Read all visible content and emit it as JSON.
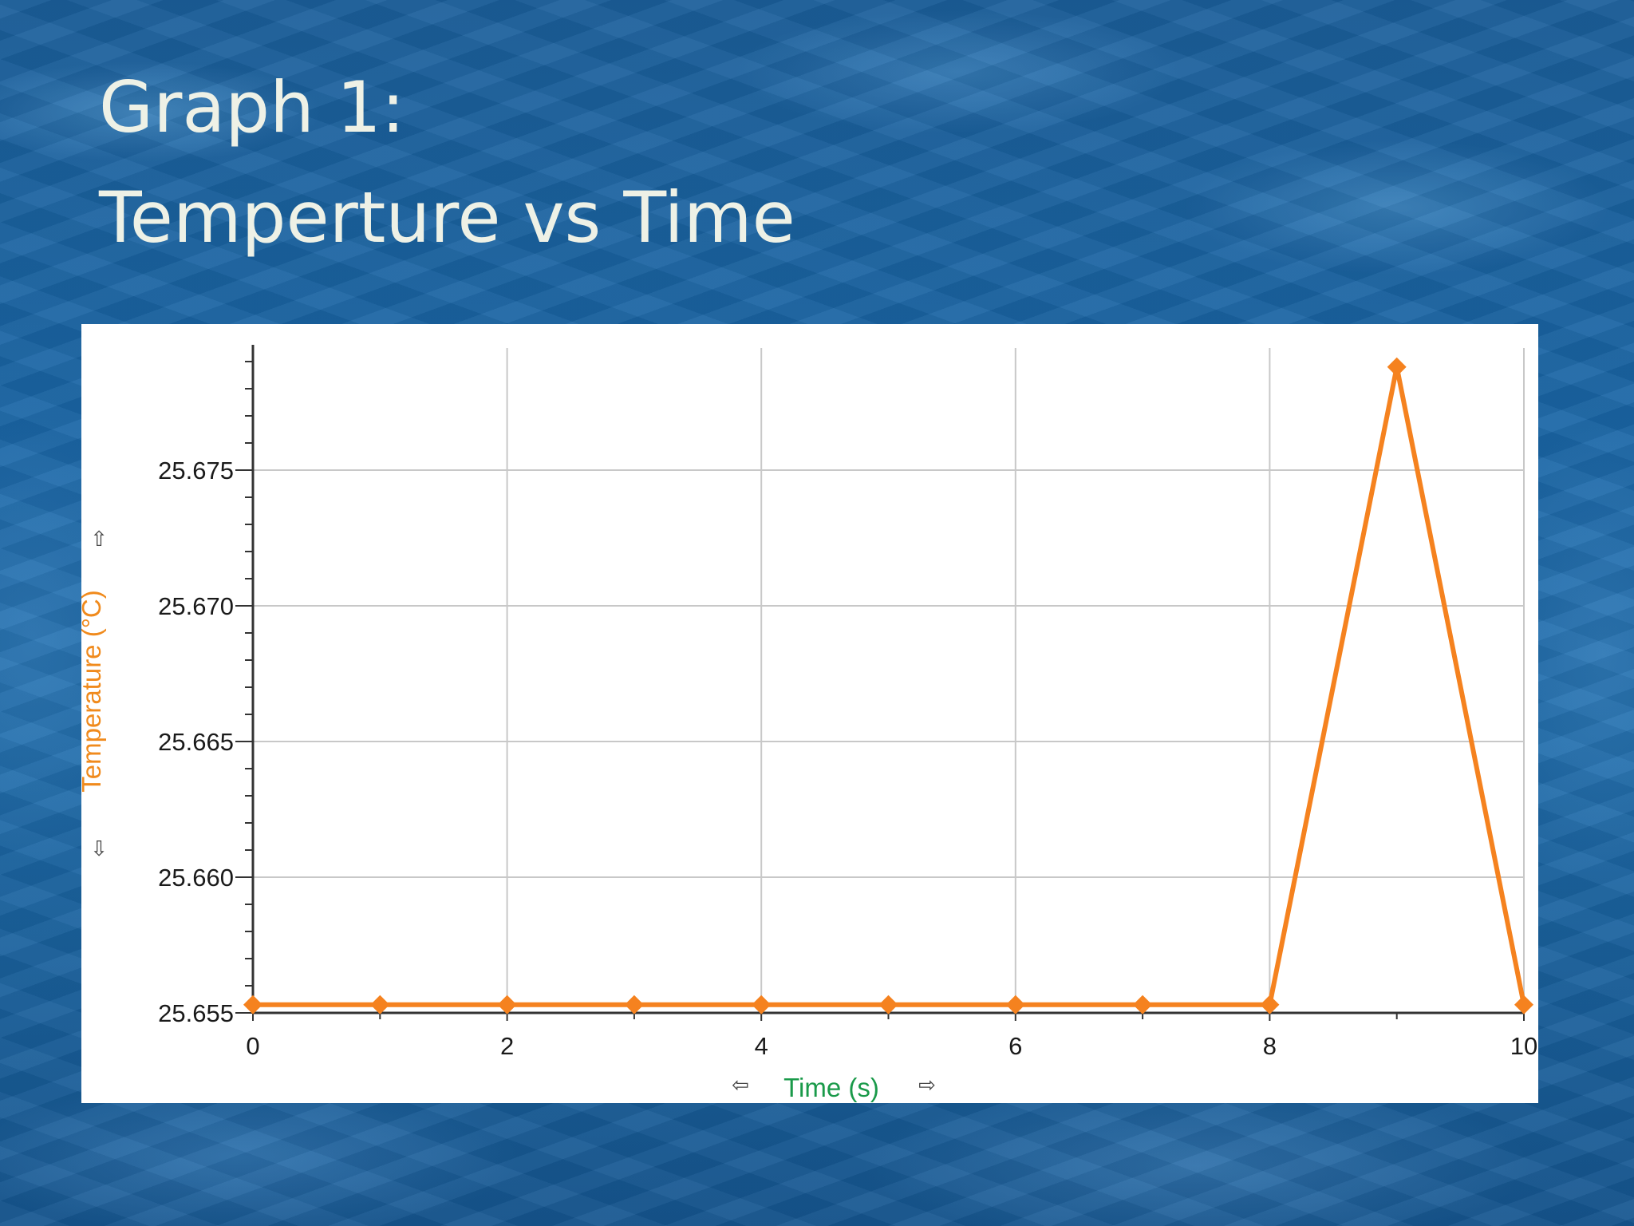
{
  "slide": {
    "title_line1": "Graph 1:",
    "title_line2": "Temperture vs Time"
  },
  "colors": {
    "series": "#f5821f",
    "x_axis_title": "#1a9a4a",
    "y_axis_title": "#f08a1c",
    "grid": "#c8c8c8",
    "title_text": "#eef1e6"
  },
  "icons": {
    "y_axis_up": "arrow-up-icon",
    "y_axis_down": "arrow-down-icon",
    "x_axis_left": "arrow-left-icon",
    "x_axis_right": "arrow-right-icon"
  },
  "chart_data": {
    "type": "line",
    "xlabel": "Time (s)",
    "ylabel": "Temperature (°C)",
    "xlim": [
      0,
      10
    ],
    "ylim": [
      25.655,
      25.6795
    ],
    "x_ticks": [
      "0",
      "2",
      "4",
      "6",
      "8",
      "10"
    ],
    "y_ticks": [
      "25.655",
      "25.660",
      "25.665",
      "25.670",
      "25.675"
    ],
    "grid": true,
    "marker": "diamond",
    "series": [
      {
        "x": [
          0,
          1,
          2,
          3,
          4,
          5,
          6,
          7,
          8,
          9,
          10
        ],
        "y": [
          25.6553,
          25.6553,
          25.6553,
          25.6553,
          25.6553,
          25.6553,
          25.6553,
          25.6553,
          25.6553,
          25.6788,
          25.6553
        ]
      }
    ]
  }
}
